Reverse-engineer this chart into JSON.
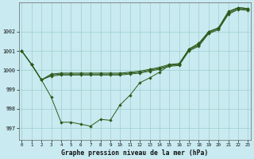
{
  "title": "Graphe pression niveau de la mer (hPa)",
  "bg_color": "#c8eaf0",
  "line_color": "#2d5a1b",
  "grid_color": "#9ecfcc",
  "x_ticks": [
    0,
    1,
    2,
    3,
    4,
    5,
    6,
    7,
    8,
    9,
    10,
    11,
    12,
    13,
    14,
    15,
    16,
    17,
    18,
    19,
    20,
    21,
    22,
    23
  ],
  "y_ticks": [
    997,
    998,
    999,
    1000,
    1001,
    1002
  ],
  "ylim": [
    996.4,
    1003.5
  ],
  "xlim": [
    -0.3,
    23.3
  ],
  "series": [
    [
      1001.0,
      1000.3,
      999.5,
      998.6,
      997.3,
      997.3,
      997.2,
      997.1,
      997.45,
      997.4,
      998.2,
      998.7,
      999.35,
      999.6,
      999.9,
      1000.25,
      1000.3,
      1001.1,
      1001.4,
      1002.0,
      1002.2,
      1003.05,
      1003.25,
      1003.2
    ],
    [
      1001.0,
      1000.3,
      999.5,
      999.8,
      999.85,
      999.85,
      999.85,
      999.85,
      999.85,
      999.85,
      999.85,
      999.9,
      999.95,
      1000.05,
      1000.15,
      1000.3,
      1000.35,
      1001.1,
      1001.35,
      1002.0,
      1002.2,
      1003.0,
      1003.25,
      1003.2
    ],
    [
      1001.0,
      1000.3,
      999.5,
      999.75,
      999.8,
      999.8,
      999.8,
      999.8,
      999.8,
      999.8,
      999.8,
      999.85,
      999.9,
      1000.0,
      1000.1,
      1000.25,
      1000.3,
      1001.05,
      1001.3,
      1001.95,
      1002.15,
      1002.95,
      1003.2,
      1003.15
    ],
    [
      1001.0,
      1000.3,
      999.5,
      999.7,
      999.75,
      999.75,
      999.75,
      999.75,
      999.75,
      999.75,
      999.75,
      999.8,
      999.85,
      999.95,
      1000.05,
      1000.2,
      1000.25,
      1001.0,
      1001.25,
      1001.9,
      1002.1,
      1002.9,
      1003.15,
      1003.1
    ]
  ]
}
